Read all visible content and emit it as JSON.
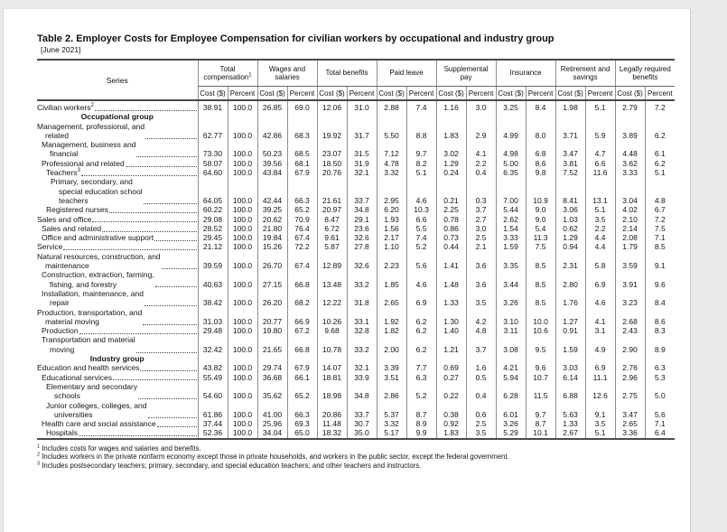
{
  "page": {
    "title": "Table 2. Employer Costs for Employee Compensation for civilian workers by occupational and industry group",
    "period": "[June 2021]"
  },
  "table": {
    "series_header": "Series",
    "sub_headers": {
      "cost": "Cost ($)",
      "percent": "Percent"
    },
    "col_groups": [
      {
        "label": "Total compensation",
        "sup": "1"
      },
      {
        "label": "Wages and salaries"
      },
      {
        "label": "Total benefits"
      },
      {
        "label": "Paid leave"
      },
      {
        "label": "Supplemental pay"
      },
      {
        "label": "Insurance"
      },
      {
        "label": "Retirement and savings"
      },
      {
        "label": "Legally required benefits"
      }
    ],
    "rows": [
      {
        "lines": [
          "Civilian workers"
        ],
        "sup": "2",
        "indent": 0,
        "values": [
          "38.91",
          "100.0",
          "26.85",
          "69.0",
          "12.06",
          "31.0",
          "2.88",
          "7.4",
          "1.16",
          "3.0",
          "3.25",
          "8.4",
          "1.98",
          "5.1",
          "2.79",
          "7.2"
        ]
      },
      {
        "section": true,
        "lines": [
          "Occupational group"
        ]
      },
      {
        "lines": [
          "Management, professional, and",
          "related"
        ],
        "indent": 0,
        "values": [
          "62.77",
          "100.0",
          "42.86",
          "68.3",
          "19.92",
          "31.7",
          "5.50",
          "8.8",
          "1.83",
          "2.9",
          "4.99",
          "8.0",
          "3.71",
          "5.9",
          "3.89",
          "6.2"
        ]
      },
      {
        "lines": [
          "Management, business and",
          "financial"
        ],
        "indent": 1,
        "values": [
          "73.30",
          "100.0",
          "50.23",
          "68.5",
          "23.07",
          "31.5",
          "7.12",
          "9.7",
          "3.02",
          "4.1",
          "4.98",
          "6.8",
          "3.47",
          "4.7",
          "4.48",
          "6.1"
        ]
      },
      {
        "lines": [
          "Professional and related"
        ],
        "indent": 1,
        "values": [
          "58.07",
          "100.0",
          "39.56",
          "68.1",
          "18.50",
          "31.9",
          "4.78",
          "8.2",
          "1.29",
          "2.2",
          "5.00",
          "8.6",
          "3.81",
          "6.6",
          "3.62",
          "6.2"
        ]
      },
      {
        "lines": [
          "Teachers"
        ],
        "sup": "3",
        "indent": 2,
        "values": [
          "64.60",
          "100.0",
          "43.84",
          "67.9",
          "20.76",
          "32.1",
          "3.32",
          "5.1",
          "0.24",
          "0.4",
          "6.35",
          "9.8",
          "7.52",
          "11.6",
          "3.33",
          "5.1"
        ]
      },
      {
        "lines": [
          "Primary, secondary, and",
          "special education school",
          "teachers"
        ],
        "indent": 3,
        "values": [
          "64.05",
          "100.0",
          "42.44",
          "66.3",
          "21.61",
          "33.7",
          "2.95",
          "4.6",
          "0.21",
          "0.3",
          "7.00",
          "10.9",
          "8.41",
          "13.1",
          "3.04",
          "4.8"
        ]
      },
      {
        "lines": [
          "Registered nurses"
        ],
        "indent": 2,
        "values": [
          "60.22",
          "100.0",
          "39.25",
          "65.2",
          "20.97",
          "34.8",
          "6.20",
          "10.3",
          "2.25",
          "3.7",
          "5.44",
          "9.0",
          "3.06",
          "5.1",
          "4.02",
          "6.7"
        ]
      },
      {
        "lines": [
          "Sales and office"
        ],
        "indent": 0,
        "values": [
          "29.08",
          "100.0",
          "20.62",
          "70.9",
          "8.47",
          "29.1",
          "1.93",
          "6.6",
          "0.78",
          "2.7",
          "2.62",
          "9.0",
          "1.03",
          "3.5",
          "2.10",
          "7.2"
        ]
      },
      {
        "lines": [
          "Sales and related"
        ],
        "indent": 1,
        "values": [
          "28.52",
          "100.0",
          "21.80",
          "76.4",
          "6.72",
          "23.6",
          "1.56",
          "5.5",
          "0.86",
          "3.0",
          "1.54",
          "5.4",
          "0.62",
          "2.2",
          "2.14",
          "7.5"
        ]
      },
      {
        "lines": [
          "Office and administrative support"
        ],
        "indent": 1,
        "values": [
          "29.45",
          "100.0",
          "19.84",
          "67.4",
          "9.61",
          "32.6",
          "2.17",
          "7.4",
          "0.73",
          "2.5",
          "3.33",
          "11.3",
          "1.29",
          "4.4",
          "2.08",
          "7.1"
        ]
      },
      {
        "lines": [
          "Service"
        ],
        "indent": 0,
        "values": [
          "21.12",
          "100.0",
          "15.26",
          "72.2",
          "5.87",
          "27.8",
          "1.10",
          "5.2",
          "0.44",
          "2.1",
          "1.59",
          "7.5",
          "0.94",
          "4.4",
          "1.79",
          "8.5"
        ]
      },
      {
        "lines": [
          "Natural resources, construction, and",
          "maintenance"
        ],
        "indent": 0,
        "values": [
          "39.59",
          "100.0",
          "26.70",
          "67.4",
          "12.89",
          "32.6",
          "2.23",
          "5.6",
          "1.41",
          "3.6",
          "3.35",
          "8.5",
          "2.31",
          "5.8",
          "3.59",
          "9.1"
        ]
      },
      {
        "lines": [
          "Construction, extraction, farming,",
          "fishing, and forestry"
        ],
        "indent": 1,
        "values": [
          "40.63",
          "100.0",
          "27.15",
          "66.8",
          "13.48",
          "33.2",
          "1.85",
          "4.6",
          "1.48",
          "3.6",
          "3.44",
          "8.5",
          "2.80",
          "6.9",
          "3.91",
          "9.6"
        ]
      },
      {
        "lines": [
          "Installation, maintenance, and",
          "repair"
        ],
        "indent": 1,
        "values": [
          "38.42",
          "100.0",
          "26.20",
          "68.2",
          "12.22",
          "31.8",
          "2.65",
          "6.9",
          "1.33",
          "3.5",
          "3.26",
          "8.5",
          "1.76",
          "4.6",
          "3.23",
          "8.4"
        ]
      },
      {
        "lines": [
          "Production, transportation, and",
          "material moving"
        ],
        "indent": 0,
        "values": [
          "31.03",
          "100.0",
          "20.77",
          "66.9",
          "10.26",
          "33.1",
          "1.92",
          "6.2",
          "1.30",
          "4.2",
          "3.10",
          "10.0",
          "1.27",
          "4.1",
          "2.68",
          "8.6"
        ]
      },
      {
        "lines": [
          "Production"
        ],
        "indent": 1,
        "values": [
          "29.48",
          "100.0",
          "19.80",
          "67.2",
          "9.68",
          "32.8",
          "1.82",
          "6.2",
          "1.40",
          "4.8",
          "3.11",
          "10.6",
          "0.91",
          "3.1",
          "2.43",
          "8.3"
        ]
      },
      {
        "lines": [
          "Transportation and material",
          "moving"
        ],
        "indent": 1,
        "values": [
          "32.42",
          "100.0",
          "21.65",
          "66.8",
          "10.78",
          "33.2",
          "2.00",
          "6.2",
          "1.21",
          "3.7",
          "3.08",
          "9.5",
          "1.59",
          "4.9",
          "2.90",
          "8.9"
        ]
      },
      {
        "section": true,
        "lines": [
          "Industry group"
        ]
      },
      {
        "lines": [
          "Education and health services"
        ],
        "indent": 0,
        "values": [
          "43.82",
          "100.0",
          "29.74",
          "67.9",
          "14.07",
          "32.1",
          "3.39",
          "7.7",
          "0.69",
          "1.6",
          "4.21",
          "9.6",
          "3.03",
          "6.9",
          "2.76",
          "6.3"
        ]
      },
      {
        "lines": [
          "Educational services"
        ],
        "indent": 1,
        "values": [
          "55.49",
          "100.0",
          "36.68",
          "66.1",
          "18.81",
          "33.9",
          "3.51",
          "6.3",
          "0.27",
          "0.5",
          "5.94",
          "10.7",
          "6.14",
          "11.1",
          "2.96",
          "5.3"
        ]
      },
      {
        "lines": [
          "Elementary and secondary",
          "schools"
        ],
        "indent": 2,
        "values": [
          "54.60",
          "100.0",
          "35.62",
          "65.2",
          "18.98",
          "34.8",
          "2.86",
          "5.2",
          "0.22",
          "0.4",
          "6.28",
          "11.5",
          "6.88",
          "12.6",
          "2.75",
          "5.0"
        ]
      },
      {
        "lines": [
          "Junior colleges, colleges, and",
          "universities"
        ],
        "indent": 2,
        "values": [
          "61.86",
          "100.0",
          "41.00",
          "66.3",
          "20.86",
          "33.7",
          "5.37",
          "8.7",
          "0.38",
          "0.6",
          "6.01",
          "9.7",
          "5.63",
          "9.1",
          "3.47",
          "5.6"
        ]
      },
      {
        "lines": [
          "Health care and social assistance"
        ],
        "indent": 1,
        "values": [
          "37.44",
          "100.0",
          "25.96",
          "69.3",
          "11.48",
          "30.7",
          "3.32",
          "8.9",
          "0.92",
          "2.5",
          "3.26",
          "8.7",
          "1.33",
          "3.5",
          "2.65",
          "7.1"
        ]
      },
      {
        "lines": [
          "Hospitals"
        ],
        "indent": 2,
        "values": [
          "52.36",
          "100.0",
          "34.04",
          "65.0",
          "18.32",
          "35.0",
          "5.17",
          "9.9",
          "1.83",
          "3.5",
          "5.29",
          "10.1",
          "2.67",
          "5.1",
          "3.36",
          "6.4"
        ]
      }
    ]
  },
  "footnotes": [
    {
      "sup": "1",
      "text": "Includes costs for wages and salaries and benefits."
    },
    {
      "sup": "2",
      "text": "Includes workers in the private nonfarm economy except those in private households, and workers in the public sector, except the federal government."
    },
    {
      "sup": "3",
      "text": "Includes postsecondary teachers; primary, secondary, and special education teachers; and other teachers and instructors."
    }
  ]
}
